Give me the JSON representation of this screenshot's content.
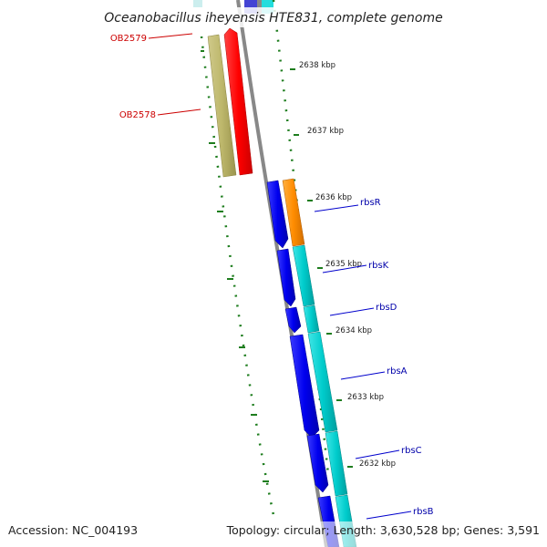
{
  "map": {
    "title": "Oceanobacillus iheyensis HTE831, complete genome",
    "accession": "Accession: NC_004193",
    "topology": "Topology: circular; Length: 3,630,528 bp; Genes: 3,591",
    "colors": {
      "reverse_gene_label": "#cc0000",
      "forward_gene_label": "#0000aa",
      "tick": "#1e7d1e",
      "backbone": "#888888"
    },
    "tick_labels": [
      "2638 kbp",
      "2637 kbp",
      "2636 kbp",
      "2635 kbp",
      "2634 kbp",
      "2633 kbp",
      "2632 kbp"
    ],
    "genes_reverse": [
      {
        "name": "OB2579",
        "color": "#ff0000"
      },
      {
        "name": "OB2578",
        "color": "#bdb76b"
      }
    ],
    "genes_forward": [
      {
        "name": "rbsR",
        "color": "#ff8c00"
      },
      {
        "name": "rbsK",
        "color": "#00cccc"
      },
      {
        "name": "rbsD",
        "color": "#00cccc"
      },
      {
        "name": "rbsA",
        "color": "#00cccc"
      },
      {
        "name": "rbsC",
        "color": "#00cccc"
      },
      {
        "name": "rbsB",
        "color": "#00cccc"
      }
    ],
    "feature_colors": {
      "cds_forward": "#0000ee",
      "cds_reverse": "#ff0000"
    }
  }
}
